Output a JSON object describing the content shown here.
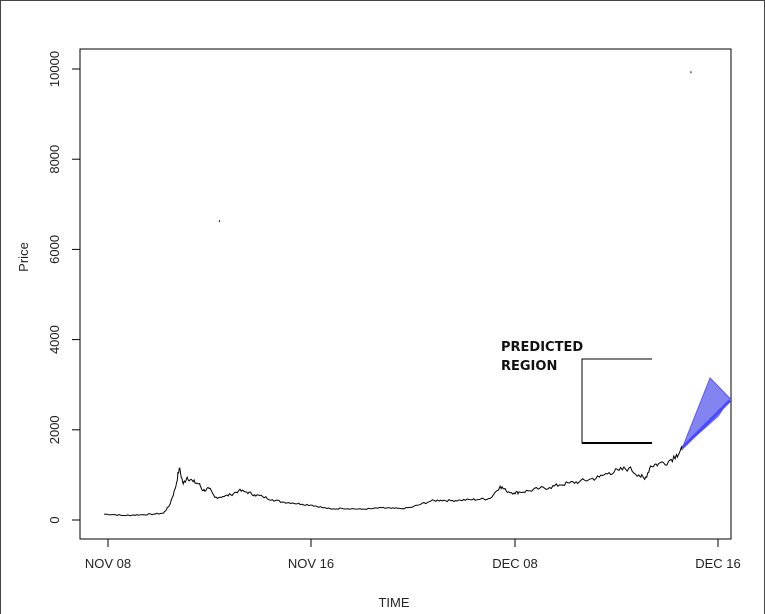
{
  "chart_data": {
    "type": "line",
    "title": "",
    "xlabel": "TIME",
    "ylabel": "Price",
    "x_ticks": [
      "NOV 08",
      "NOV 16",
      "DEC 08",
      "DEC 16"
    ],
    "y_ticks": [
      0,
      2000,
      4000,
      6000,
      8000,
      10000
    ],
    "xlim": [
      0,
      31
    ],
    "ylim": [
      -400,
      10500
    ],
    "grid": false,
    "legend": "none",
    "annotation": {
      "text_line1": "PREDICTED",
      "text_line2": "REGION"
    },
    "series": [
      {
        "color": "#000000",
        "points": [
          [
            0.0,
            130
          ],
          [
            0.5,
            120
          ],
          [
            1.0,
            100
          ],
          [
            1.5,
            110
          ],
          [
            2.0,
            120
          ],
          [
            2.5,
            130
          ],
          [
            3.0,
            150
          ],
          [
            3.3,
            320
          ],
          [
            3.6,
            700
          ],
          [
            3.8,
            1150
          ],
          [
            4.0,
            800
          ],
          [
            4.2,
            950
          ],
          [
            4.5,
            850
          ],
          [
            4.8,
            800
          ],
          [
            5.0,
            650
          ],
          [
            5.3,
            700
          ],
          [
            5.6,
            500
          ],
          [
            6.0,
            520
          ],
          [
            6.4,
            560
          ],
          [
            6.8,
            650
          ],
          [
            7.2,
            620
          ],
          [
            7.6,
            560
          ],
          [
            8.0,
            520
          ],
          [
            8.5,
            450
          ],
          [
            9.0,
            400
          ],
          [
            9.5,
            380
          ],
          [
            10.0,
            350
          ],
          [
            10.5,
            330
          ],
          [
            11.0,
            280
          ],
          [
            11.5,
            240
          ],
          [
            12.0,
            260
          ],
          [
            12.5,
            250
          ],
          [
            13.0,
            240
          ],
          [
            13.5,
            250
          ],
          [
            14.0,
            270
          ],
          [
            14.5,
            260
          ],
          [
            15.0,
            250
          ],
          [
            15.5,
            280
          ],
          [
            16.0,
            350
          ],
          [
            16.5,
            420
          ],
          [
            17.0,
            440
          ],
          [
            17.5,
            430
          ],
          [
            18.0,
            440
          ],
          [
            18.5,
            450
          ],
          [
            19.0,
            460
          ],
          [
            19.5,
            480
          ],
          [
            20.0,
            750
          ],
          [
            20.3,
            650
          ],
          [
            20.7,
            600
          ],
          [
            21.0,
            620
          ],
          [
            21.5,
            650
          ],
          [
            22.0,
            700
          ],
          [
            22.5,
            720
          ],
          [
            23.0,
            780
          ],
          [
            23.5,
            820
          ],
          [
            24.0,
            850
          ],
          [
            24.5,
            900
          ],
          [
            25.0,
            950
          ],
          [
            25.5,
            1050
          ],
          [
            26.0,
            1100
          ],
          [
            26.5,
            1150
          ],
          [
            27.0,
            1000
          ],
          [
            27.3,
            900
          ],
          [
            27.6,
            1200
          ],
          [
            28.0,
            1250
          ],
          [
            28.5,
            1300
          ],
          [
            28.9,
            1450
          ],
          [
            29.2,
            1550
          ]
        ]
      }
    ],
    "forecast": {
      "color": "#4a4aff",
      "band_color": "#6f6fee",
      "start": [
        29.2,
        1600
      ],
      "end": [
        31.0,
        2650
      ],
      "upper_end": [
        30.6,
        3150
      ],
      "lower_end": [
        31.0,
        2300
      ]
    },
    "stray_points": [
      [
        5.8,
        6650
      ],
      [
        29.6,
        9950
      ]
    ]
  }
}
